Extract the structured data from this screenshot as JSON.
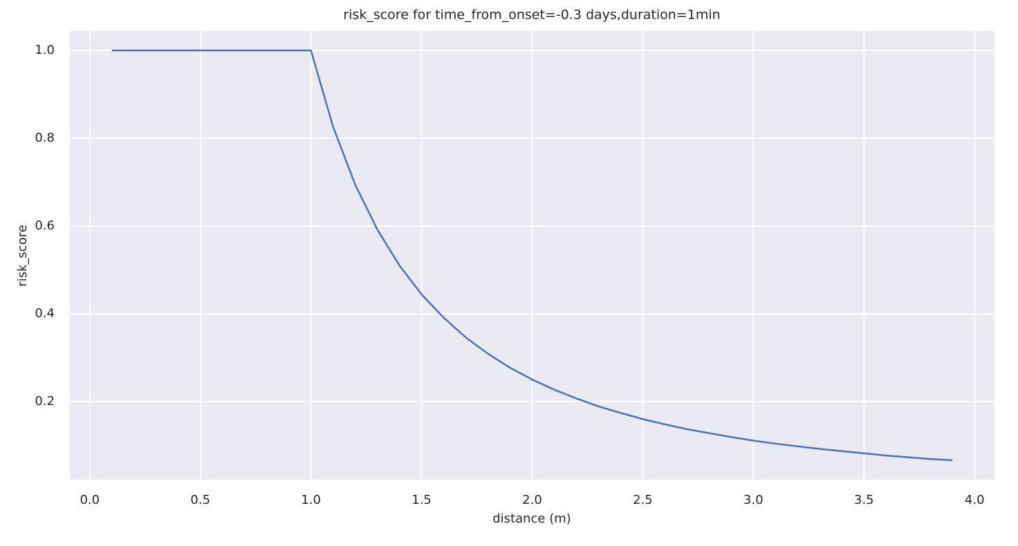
{
  "chart_data": {
    "type": "line",
    "title": "risk_score for time_from_onset=-0.3 days,duration=1min",
    "xlabel": "distance (m)",
    "ylabel": "risk_score",
    "x": [
      0.1,
      0.2,
      0.3,
      0.4,
      0.5,
      0.6,
      0.7,
      0.8,
      0.9,
      1.0,
      1.1,
      1.2,
      1.3,
      1.4,
      1.5,
      1.6,
      1.7,
      1.8,
      1.9,
      2.0,
      2.1,
      2.2,
      2.3,
      2.4,
      2.5,
      2.6,
      2.7,
      2.8,
      2.9,
      3.0,
      3.1,
      3.2,
      3.3,
      3.4,
      3.5,
      3.6,
      3.7,
      3.8,
      3.9
    ],
    "values": [
      1,
      1,
      1,
      1,
      1,
      1,
      1,
      1,
      1,
      1,
      0.826,
      0.694,
      0.592,
      0.51,
      0.444,
      0.391,
      0.346,
      0.309,
      0.277,
      0.25,
      0.227,
      0.207,
      0.189,
      0.174,
      0.16,
      0.148,
      0.137,
      0.128,
      0.119,
      0.111,
      0.104,
      0.098,
      0.092,
      0.087,
      0.082,
      0.077,
      0.073,
      0.069,
      0.066
    ],
    "color": "#4c72b0",
    "background": "#eaeaf2",
    "grid": true,
    "xlim": [
      -0.09,
      4.09
    ],
    "ylim": [
      0.022,
      1.044
    ],
    "xticks": [
      {
        "value": 0,
        "label": "0.0"
      },
      0.5,
      {
        "value": 1,
        "label": "1.0"
      },
      1.5,
      {
        "value": 2,
        "label": "2.0"
      },
      2.5,
      {
        "value": 3,
        "label": "3.0"
      },
      3.5,
      {
        "value": 4,
        "label": "4.0"
      }
    ],
    "yticks": [
      0.2,
      0.4,
      0.6,
      0.8,
      {
        "value": 1,
        "label": "1.0"
      }
    ]
  }
}
